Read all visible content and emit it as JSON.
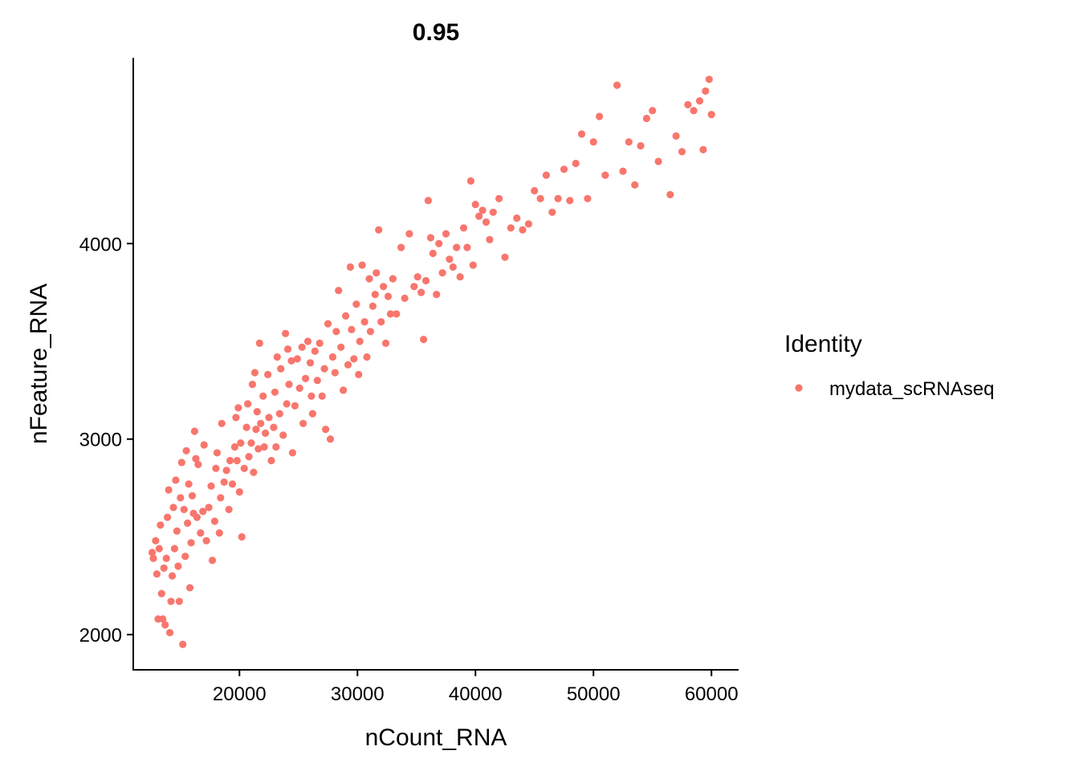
{
  "chart_data": {
    "type": "scatter",
    "title": "0.95",
    "xlabel": "nCount_RNA",
    "ylabel": "nFeature_RNA",
    "xlim": [
      11000,
      62300
    ],
    "ylim": [
      1820,
      4950
    ],
    "x_ticks": [
      20000,
      30000,
      40000,
      50000,
      60000
    ],
    "y_ticks": [
      2000,
      3000,
      4000
    ],
    "x_tick_labels": [
      "20000",
      "30000",
      "40000",
      "50000",
      "60000"
    ],
    "y_tick_labels": [
      "2000",
      "3000",
      "4000"
    ],
    "grid": false,
    "legend": {
      "title": "Identity",
      "position": "right",
      "entries": [
        {
          "label": "mydata_scRNAseq",
          "color": "#F8766D"
        }
      ]
    },
    "series": [
      {
        "name": "mydata_scRNAseq",
        "color": "#F8766D",
        "points": [
          [
            12600,
            2420
          ],
          [
            12700,
            2390
          ],
          [
            12900,
            2480
          ],
          [
            13000,
            2310
          ],
          [
            13100,
            2080
          ],
          [
            13200,
            2440
          ],
          [
            13300,
            2560
          ],
          [
            13400,
            2210
          ],
          [
            13500,
            2080
          ],
          [
            13600,
            2340
          ],
          [
            13700,
            2050
          ],
          [
            13800,
            2390
          ],
          [
            13900,
            2600
          ],
          [
            14000,
            2740
          ],
          [
            14100,
            2010
          ],
          [
            14200,
            2170
          ],
          [
            14300,
            2300
          ],
          [
            14400,
            2650
          ],
          [
            14500,
            2440
          ],
          [
            14600,
            2790
          ],
          [
            14700,
            2530
          ],
          [
            14800,
            2350
          ],
          [
            14900,
            2170
          ],
          [
            15000,
            2700
          ],
          [
            15100,
            2880
          ],
          [
            15200,
            1950
          ],
          [
            15300,
            2640
          ],
          [
            15400,
            2400
          ],
          [
            15500,
            2940
          ],
          [
            15600,
            2570
          ],
          [
            15700,
            2770
          ],
          [
            15800,
            2240
          ],
          [
            15900,
            2470
          ],
          [
            16000,
            2710
          ],
          [
            16100,
            2620
          ],
          [
            16200,
            3040
          ],
          [
            16300,
            2900
          ],
          [
            16400,
            2600
          ],
          [
            16500,
            2870
          ],
          [
            16700,
            2520
          ],
          [
            16900,
            2630
          ],
          [
            17000,
            2970
          ],
          [
            17200,
            2480
          ],
          [
            17400,
            2650
          ],
          [
            17600,
            2760
          ],
          [
            17700,
            2380
          ],
          [
            17900,
            2580
          ],
          [
            18000,
            2850
          ],
          [
            18100,
            2930
          ],
          [
            18300,
            2520
          ],
          [
            18400,
            2700
          ],
          [
            18500,
            3080
          ],
          [
            18700,
            2780
          ],
          [
            18900,
            2840
          ],
          [
            19100,
            2640
          ],
          [
            19200,
            2890
          ],
          [
            19400,
            2770
          ],
          [
            19600,
            2960
          ],
          [
            19700,
            3110
          ],
          [
            19800,
            2890
          ],
          [
            19900,
            3160
          ],
          [
            20000,
            2730
          ],
          [
            20100,
            2980
          ],
          [
            20200,
            2500
          ],
          [
            20400,
            2850
          ],
          [
            20600,
            3060
          ],
          [
            20700,
            3180
          ],
          [
            20800,
            2910
          ],
          [
            21000,
            2980
          ],
          [
            21100,
            3280
          ],
          [
            21200,
            2830
          ],
          [
            21300,
            3340
          ],
          [
            21400,
            3050
          ],
          [
            21500,
            3140
          ],
          [
            21600,
            2950
          ],
          [
            21700,
            3490
          ],
          [
            21800,
            3080
          ],
          [
            22000,
            3220
          ],
          [
            22100,
            2960
          ],
          [
            22200,
            3030
          ],
          [
            22400,
            3330
          ],
          [
            22500,
            3110
          ],
          [
            22700,
            2890
          ],
          [
            22900,
            3060
          ],
          [
            23000,
            3240
          ],
          [
            23100,
            2960
          ],
          [
            23200,
            3420
          ],
          [
            23400,
            3130
          ],
          [
            23500,
            3360
          ],
          [
            23700,
            3020
          ],
          [
            23900,
            3540
          ],
          [
            24000,
            3180
          ],
          [
            24100,
            3460
          ],
          [
            24200,
            3280
          ],
          [
            24400,
            3400
          ],
          [
            24500,
            2930
          ],
          [
            24700,
            3170
          ],
          [
            24900,
            3410
          ],
          [
            25100,
            3260
          ],
          [
            25300,
            3470
          ],
          [
            25400,
            3080
          ],
          [
            25600,
            3310
          ],
          [
            25800,
            3500
          ],
          [
            26000,
            3390
          ],
          [
            26100,
            3220
          ],
          [
            26200,
            3130
          ],
          [
            26400,
            3450
          ],
          [
            26600,
            3300
          ],
          [
            26800,
            3490
          ],
          [
            27000,
            3220
          ],
          [
            27200,
            3360
          ],
          [
            27300,
            3050
          ],
          [
            27500,
            3590
          ],
          [
            27700,
            3000
          ],
          [
            27900,
            3420
          ],
          [
            28100,
            3340
          ],
          [
            28200,
            3550
          ],
          [
            28400,
            3760
          ],
          [
            28600,
            3470
          ],
          [
            28800,
            3250
          ],
          [
            29000,
            3630
          ],
          [
            29200,
            3380
          ],
          [
            29400,
            3880
          ],
          [
            29500,
            3560
          ],
          [
            29700,
            3410
          ],
          [
            29900,
            3690
          ],
          [
            30100,
            3330
          ],
          [
            30200,
            3500
          ],
          [
            30400,
            3890
          ],
          [
            30600,
            3600
          ],
          [
            30800,
            3420
          ],
          [
            31000,
            3820
          ],
          [
            31100,
            3550
          ],
          [
            31300,
            3680
          ],
          [
            31500,
            3740
          ],
          [
            31600,
            3850
          ],
          [
            31800,
            4070
          ],
          [
            32000,
            3600
          ],
          [
            32200,
            3780
          ],
          [
            32400,
            3490
          ],
          [
            32600,
            3730
          ],
          [
            32800,
            3640
          ],
          [
            33000,
            3820
          ],
          [
            33300,
            3640
          ],
          [
            33700,
            3980
          ],
          [
            34000,
            3720
          ],
          [
            34400,
            4050
          ],
          [
            34800,
            3780
          ],
          [
            35100,
            3830
          ],
          [
            35400,
            3750
          ],
          [
            35600,
            3510
          ],
          [
            35800,
            3810
          ],
          [
            36000,
            4220
          ],
          [
            36200,
            4030
          ],
          [
            36400,
            3950
          ],
          [
            36700,
            3740
          ],
          [
            36900,
            4000
          ],
          [
            37200,
            3850
          ],
          [
            37500,
            4050
          ],
          [
            37800,
            3920
          ],
          [
            38100,
            3880
          ],
          [
            38400,
            3980
          ],
          [
            38700,
            3830
          ],
          [
            39000,
            4080
          ],
          [
            39300,
            3980
          ],
          [
            39600,
            4320
          ],
          [
            39800,
            3890
          ],
          [
            40000,
            4200
          ],
          [
            40300,
            4140
          ],
          [
            40600,
            4170
          ],
          [
            40900,
            4110
          ],
          [
            41200,
            4020
          ],
          [
            41500,
            4160
          ],
          [
            42000,
            4230
          ],
          [
            42500,
            3930
          ],
          [
            43000,
            4080
          ],
          [
            43500,
            4130
          ],
          [
            44000,
            4070
          ],
          [
            44500,
            4100
          ],
          [
            45000,
            4270
          ],
          [
            45500,
            4230
          ],
          [
            46000,
            4350
          ],
          [
            46500,
            4160
          ],
          [
            47000,
            4230
          ],
          [
            47500,
            4380
          ],
          [
            48000,
            4220
          ],
          [
            48500,
            4410
          ],
          [
            49000,
            4560
          ],
          [
            49500,
            4230
          ],
          [
            50000,
            4520
          ],
          [
            50500,
            4650
          ],
          [
            51000,
            4350
          ],
          [
            52000,
            4810
          ],
          [
            52500,
            4370
          ],
          [
            53000,
            4520
          ],
          [
            53500,
            4300
          ],
          [
            54000,
            4500
          ],
          [
            54500,
            4640
          ],
          [
            55000,
            4680
          ],
          [
            55500,
            4420
          ],
          [
            56500,
            4250
          ],
          [
            57000,
            4550
          ],
          [
            57500,
            4470
          ],
          [
            58000,
            4710
          ],
          [
            58500,
            4680
          ],
          [
            59000,
            4730
          ],
          [
            59300,
            4480
          ],
          [
            59500,
            4780
          ],
          [
            59800,
            4840
          ],
          [
            60000,
            4660
          ]
        ]
      }
    ]
  }
}
